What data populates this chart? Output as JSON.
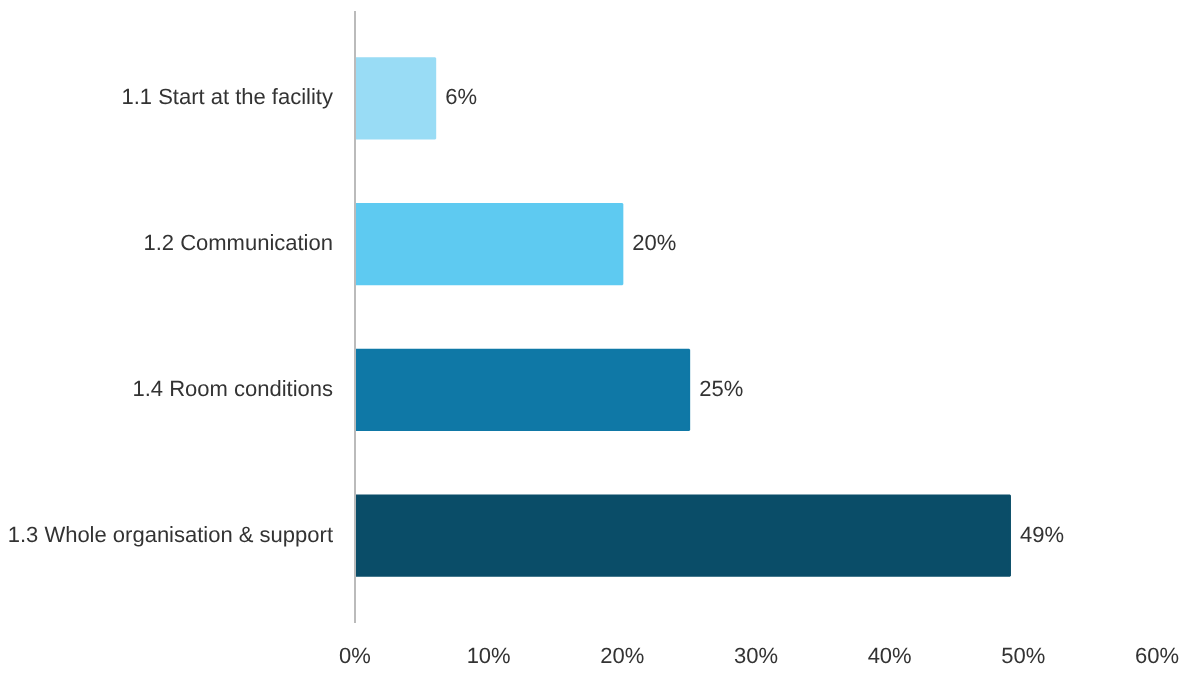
{
  "chart_data": {
    "type": "bar",
    "orientation": "horizontal",
    "categories": [
      "1.1 Start at the facility",
      "1.2 Communication",
      "1.4 Room conditions",
      "1.3 Whole organisation & support"
    ],
    "values": [
      6,
      20,
      25,
      49
    ],
    "colors": [
      "#99dcf5",
      "#5ecaf1",
      "#0f78a6",
      "#0a4d68"
    ],
    "value_labels": [
      "6%",
      "20%",
      "25%",
      "49%"
    ],
    "xlim": [
      0,
      60
    ],
    "xticks": [
      {
        "value": 0,
        "label": "0%"
      },
      {
        "value": 10,
        "label": "10%"
      },
      {
        "value": 20,
        "label": "20%"
      },
      {
        "value": 30,
        "label": "30%"
      },
      {
        "value": 40,
        "label": "40%"
      },
      {
        "value": 50,
        "label": "50%"
      },
      {
        "value": 60,
        "label": "60%"
      }
    ],
    "grid": false
  }
}
